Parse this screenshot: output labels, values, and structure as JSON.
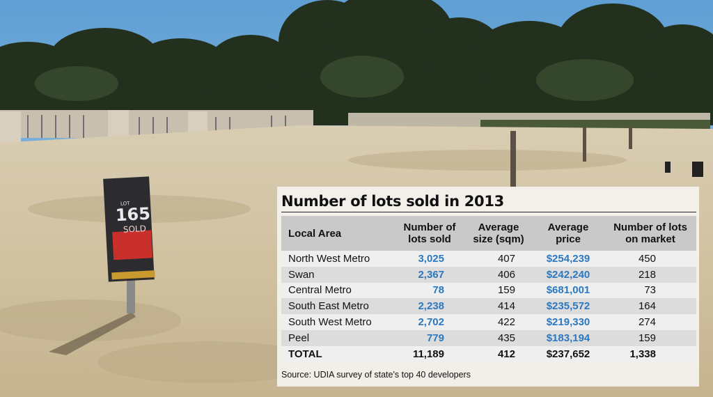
{
  "chart_data": {
    "type": "table",
    "title": "Number of lots sold in 2013",
    "columns": [
      {
        "lines": [
          "Local Area"
        ]
      },
      {
        "lines": [
          "Number of",
          "lots sold"
        ]
      },
      {
        "lines": [
          "Average",
          "size (sqm)"
        ]
      },
      {
        "lines": [
          "Average",
          "price"
        ]
      },
      {
        "lines": [
          "Number of lots",
          "on market"
        ]
      }
    ],
    "rows": [
      {
        "area": "North West Metro",
        "sold": "3,025",
        "size": "407",
        "price": "$254,239",
        "market": "450"
      },
      {
        "area": "Swan",
        "sold": "2,367",
        "size": "406",
        "price": "$242,240",
        "market": "218"
      },
      {
        "area": "Central Metro",
        "sold": "78",
        "size": "159",
        "price": "$681,001",
        "market": "73"
      },
      {
        "area": "South East Metro",
        "sold": "2,238",
        "size": "414",
        "price": "$235,572",
        "market": "164"
      },
      {
        "area": "South West Metro",
        "sold": "2,702",
        "size": "422",
        "price": "$219,330",
        "market": "274"
      },
      {
        "area": "Peel",
        "sold": "779",
        "size": "435",
        "price": "$183,194",
        "market": "159"
      }
    ],
    "total": {
      "area": "TOTAL",
      "sold": "11,189",
      "size": "412",
      "price": "$237,652",
      "market": "1,338"
    },
    "source": "Source: UDIA survey of state's top 40 developers",
    "highlight_color": "#2c78bf",
    "header_color": "#c9c9c9"
  },
  "photo": {
    "description": "Cleared sandy housing estate lots with trees in background",
    "sign": {
      "lot_label": "LOT",
      "lot_number": "165",
      "status": "SOLD"
    }
  }
}
